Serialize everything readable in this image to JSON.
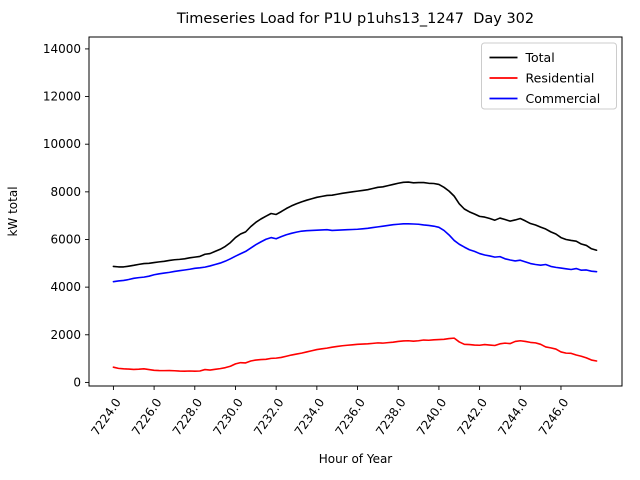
{
  "figure": {
    "background": "#ffffff",
    "axes_edge_color": "#000000",
    "legend_border_color": "#cccccc"
  },
  "chart_data": {
    "type": "line",
    "title": "Timeseries Load for P1U p1uhs13_1247  Day 302",
    "xlabel": "Hour of Year",
    "ylabel": "kW total",
    "xlim": [
      7222.8,
      7249.0
    ],
    "ylim": [
      -150,
      14500
    ],
    "grid": false,
    "legend_position": "upper right",
    "x_tick_labels": [
      "7224.0",
      "7226.0",
      "7228.0",
      "7230.0",
      "7232.0",
      "7234.0",
      "7236.0",
      "7238.0",
      "7240.0",
      "7242.0",
      "7244.0",
      "7246.0"
    ],
    "y_tick_labels": [
      "0",
      "2000",
      "4000",
      "6000",
      "8000",
      "10000",
      "12000",
      "14000"
    ],
    "x_start": 7224.0,
    "x_step": 0.25,
    "x_end": 7247.75,
    "series": [
      {
        "name": "Total",
        "color": "#000000",
        "values": [
          4870,
          4850,
          4850,
          4880,
          4915,
          4955,
          4990,
          5000,
          5030,
          5060,
          5085,
          5120,
          5150,
          5165,
          5190,
          5230,
          5260,
          5290,
          5380,
          5410,
          5500,
          5590,
          5710,
          5870,
          6080,
          6230,
          6320,
          6540,
          6720,
          6860,
          6980,
          7090,
          7050,
          7170,
          7300,
          7410,
          7500,
          7580,
          7650,
          7710,
          7770,
          7810,
          7850,
          7860,
          7900,
          7940,
          7970,
          8000,
          8030,
          8060,
          8090,
          8140,
          8190,
          8210,
          8260,
          8310,
          8360,
          8400,
          8410,
          8380,
          8390,
          8390,
          8360,
          8350,
          8310,
          8190,
          8030,
          7820,
          7500,
          7280,
          7160,
          7070,
          6970,
          6940,
          6880,
          6810,
          6900,
          6840,
          6770,
          6820,
          6880,
          6780,
          6670,
          6610,
          6520,
          6440,
          6320,
          6230,
          6080,
          6000,
          5960,
          5930,
          5810,
          5750,
          5610,
          5550
        ]
      },
      {
        "name": "Residential",
        "color": "#ff0000",
        "values": [
          640,
          590,
          570,
          560,
          545,
          555,
          570,
          540,
          510,
          500,
          495,
          500,
          490,
          475,
          470,
          480,
          470,
          480,
          540,
          520,
          550,
          580,
          620,
          680,
          780,
          830,
          820,
          900,
          940,
          960,
          970,
          1010,
          1020,
          1050,
          1100,
          1150,
          1190,
          1230,
          1280,
          1330,
          1380,
          1410,
          1440,
          1480,
          1510,
          1540,
          1560,
          1580,
          1600,
          1610,
          1620,
          1640,
          1660,
          1650,
          1670,
          1690,
          1720,
          1740,
          1750,
          1730,
          1750,
          1780,
          1770,
          1790,
          1800,
          1810,
          1840,
          1860,
          1700,
          1600,
          1590,
          1570,
          1560,
          1590,
          1570,
          1550,
          1620,
          1650,
          1630,
          1720,
          1750,
          1720,
          1680,
          1660,
          1600,
          1490,
          1450,
          1400,
          1280,
          1230,
          1220,
          1150,
          1100,
          1030,
          940,
          900
        ]
      },
      {
        "name": "Commercial",
        "color": "#0000ff",
        "values": [
          4230,
          4260,
          4280,
          4320,
          4370,
          4400,
          4420,
          4460,
          4520,
          4560,
          4590,
          4620,
          4660,
          4690,
          4720,
          4750,
          4790,
          4810,
          4840,
          4890,
          4950,
          5010,
          5090,
          5190,
          5300,
          5400,
          5500,
          5640,
          5780,
          5900,
          6010,
          6080,
          6030,
          6120,
          6200,
          6260,
          6310,
          6350,
          6370,
          6380,
          6390,
          6400,
          6410,
          6380,
          6390,
          6400,
          6410,
          6420,
          6430,
          6450,
          6470,
          6500,
          6530,
          6560,
          6590,
          6620,
          6640,
          6660,
          6660,
          6650,
          6640,
          6610,
          6590,
          6560,
          6510,
          6380,
          6190,
          5960,
          5800,
          5680,
          5570,
          5500,
          5410,
          5350,
          5310,
          5260,
          5280,
          5190,
          5140,
          5100,
          5130,
          5060,
          4990,
          4950,
          4920,
          4950,
          4870,
          4830,
          4800,
          4770,
          4740,
          4780,
          4710,
          4720,
          4670,
          4650
        ]
      }
    ]
  }
}
